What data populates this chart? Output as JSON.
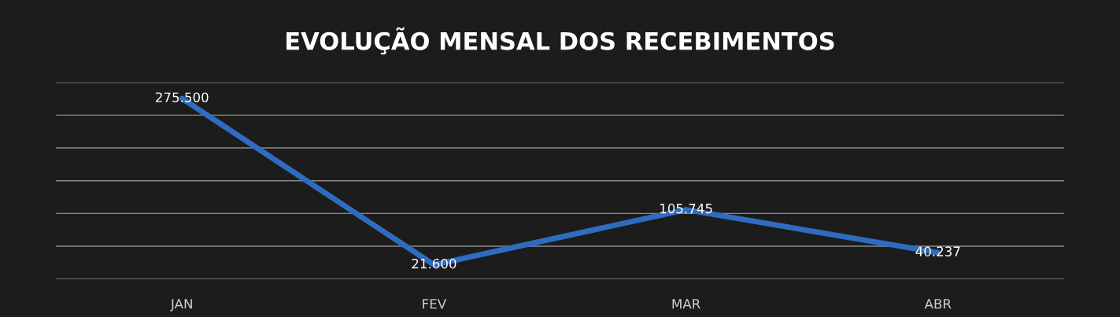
{
  "chart_data": {
    "type": "line",
    "title": "EVOLUÇÃO MENSAL DOS RECEBIMENTOS",
    "categories": [
      "JAN",
      "FEV",
      "MAR",
      "ABR"
    ],
    "series": [
      {
        "color": "#2f6cc0",
        "values": [
          275500,
          21600,
          105745,
          40237
        ],
        "value_labels": [
          "275.500",
          "21.600",
          "105.745",
          "40.237"
        ]
      }
    ],
    "ylim": [
      0,
      300000
    ],
    "yticks": [
      {
        "value": 0,
        "label": null
      },
      {
        "value": 50000,
        "label": null
      },
      {
        "value": 100000,
        "label": null
      },
      {
        "value": 150000,
        "label": null
      },
      {
        "value": 200000,
        "label": null
      },
      {
        "value": 250000,
        "label": null
      },
      {
        "value": 300000,
        "label": null
      }
    ],
    "grid": "y",
    "tick_labels": "x",
    "marker": "none",
    "line_style": "solid"
  }
}
